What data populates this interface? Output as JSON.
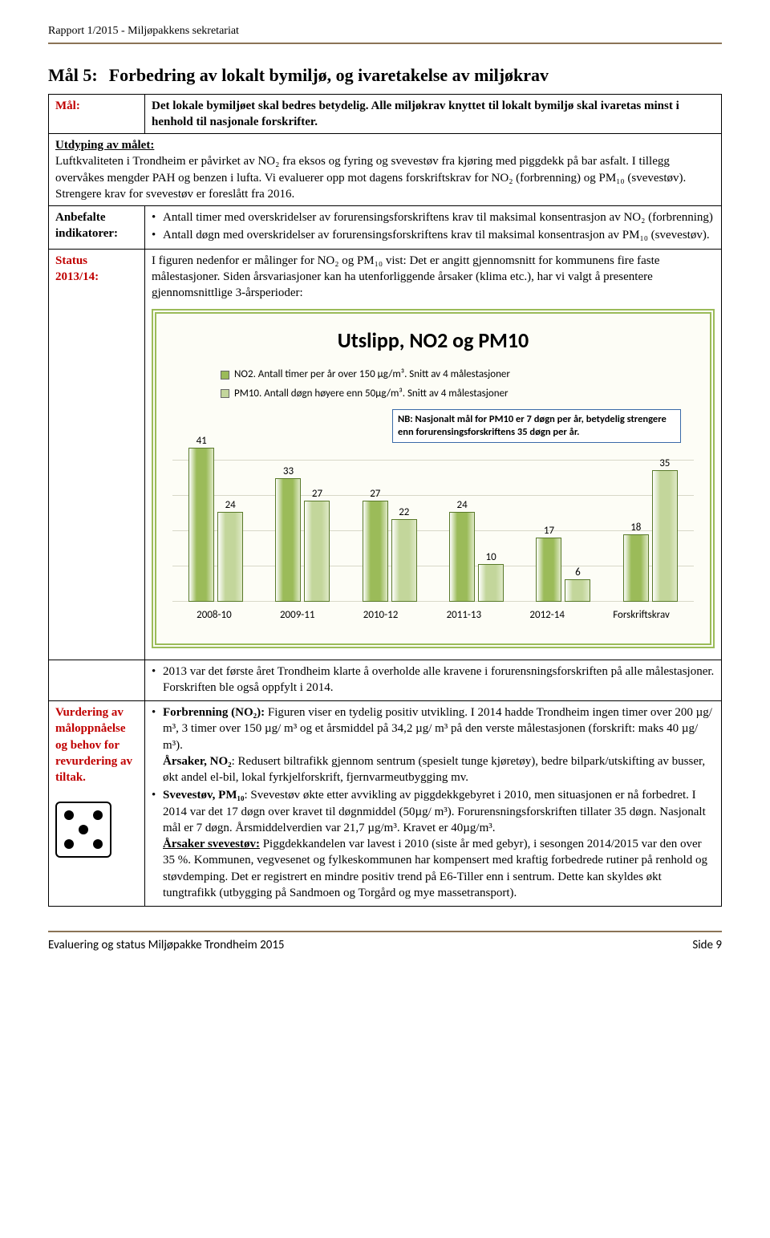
{
  "header": {
    "report_line": "Rapport 1/2015 - Miljøpakkens sekretariat"
  },
  "title": {
    "prefix": "Mål 5:",
    "text": "Forbedring av lokalt bymiljø, og ivaretakelse av miljøkrav"
  },
  "rows": {
    "mal": {
      "label": "Mål:",
      "text": "Det lokale bymiljøet skal bedres betydelig. Alle miljøkrav knyttet til lokalt bymiljø skal ivaretas minst i henhold til nasjonale forskrifter."
    },
    "utdyping": {
      "label": "Utdyping av målet:",
      "text": "Luftkvaliteten i Trondheim er påvirket av NO₂ fra eksos og fyring og svevestøv fra kjøring med piggdekk på bar asfalt. I tillegg overvåkes mengder PAH og benzen i lufta. Vi evaluerer opp mot dagens forskriftskrav for NO₂ (forbrenning) og PM₁₀ (svevestøv). Strengere krav for svevestøv er foreslått fra 2016."
    },
    "anbefalte": {
      "label": "Anbefalte indikatorer:",
      "bullet1": "Antall timer med overskridelser av forurensingsforskriftens krav til maksimal konsentrasjon av NO₂ (forbrenning)",
      "bullet2": "Antall døgn med overskridelser av forurensingsforskriftens krav til maksimal konsentrasjon av PM₁₀ (svevestøv)."
    },
    "status": {
      "label1": "Status",
      "label2": "2013/14:",
      "intro": "I figuren nedenfor er målinger for NO₂ og PM₁₀ vist: Det er angitt gjennomsnitt for kommunens fire faste målestasjoner. Siden årsvariasjoner kan ha utenforliggende årsaker (klima etc.), har vi valgt å presentere gjennomsnittlige 3-årsperioder:"
    },
    "post_chart_bullet": "2013 var det første året Trondheim klarte å overholde alle kravene i forurensningsforskriften på alle målestasjoner. Forskriften ble også oppfylt i 2014.",
    "vurdering": {
      "label": "Vurdering av måloppnåelse og behov for revurdering av tiltak.",
      "p1_lead": "Forbrenning (NO₂):",
      "p1": " Figuren viser en tydelig positiv utvikling. I 2014 hadde Trondheim ingen timer over 200 µg/ m³, 3 timer over 150 µg/ m³ og et årsmiddel på 34,2 µg/ m³ på den verste målestasjonen (forskrift: maks 40 µg/ m³).",
      "p1b_lead": "Årsaker, NO₂",
      "p1b": ": Redusert biltrafikk gjennom sentrum (spesielt tunge kjøretøy), bedre bilpark/utskifting av busser, økt andel el-bil, lokal fyrkjelforskrift, fjernvarmeutbygging mv.",
      "p2_lead": "Svevestøv, PM₁₀",
      "p2": ": Svevestøv økte etter avvikling av piggdekkgebyret i 2010, men situasjonen er nå forbedret. I 2014 var det 17 døgn over kravet til døgnmiddel (50µg/ m³). Forurensningsforskriften tillater 35 døgn. Nasjonalt mål er 7 døgn. Årsmiddelverdien var 21,7 µg/m³. Kravet er 40µg/m³.",
      "p3_lead": "Årsaker svevestøv:",
      "p3": " Piggdekkandelen var lavest i 2010 (siste år med gebyr), i sesongen 2014/2015 var den over 35 %. Kommunen, vegvesenet og fylkeskommunen har kompensert med kraftig forbedrede rutiner på renhold og støvdemping. Det er registrert en mindre positiv trend på E6-Tiller enn i sentrum. Dette kan skyldes økt tungtrafikk (utbygging på Sandmoen og Torgård og mye massetransport)."
    }
  },
  "chart": {
    "title": "Utslipp, NO2 og PM10",
    "legend1": "NO2. Antall timer per år over 150 µg/m³. Snitt av 4 målestasjoner",
    "legend2": "PM10. Antall døgn høyere enn 50µg/m³. Snitt av 4 målestasjoner",
    "note": "NB: Nasjonalt  mål  for PM10 er 7 døgn per år, betydelig strengere enn forurensingsforskriftens 35 døgn per år.",
    "colors": {
      "no2": "#9bbb59",
      "pm10": "#c3d69b",
      "swatch1": "#9bbb59",
      "swatch2": "#c3d69b"
    },
    "categories": [
      "2008-10",
      "2009-11",
      "2010-12",
      "2011-13",
      "2012-14",
      "Forskriftskrav"
    ],
    "series": {
      "no2": [
        41,
        33,
        27,
        24,
        17,
        18
      ],
      "pm10": [
        24,
        27,
        22,
        10,
        6,
        35
      ]
    },
    "ymax": 45
  },
  "footer": {
    "left": "Evaluering og status Miljøpakke Trondheim 2015",
    "right": "Side 9"
  }
}
